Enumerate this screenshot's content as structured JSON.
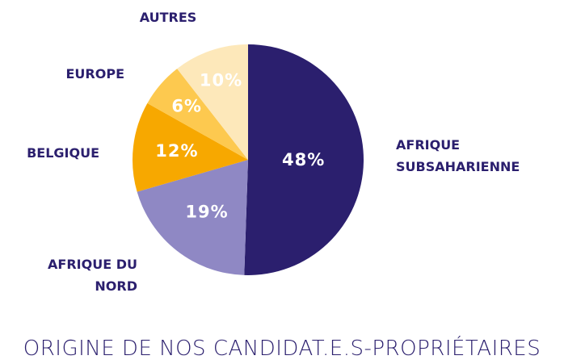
{
  "chart_data": {
    "type": "pie",
    "title": "ORIGINE DE NOS CANDIDAT.E.S-PROPRIÉTAIRES",
    "categories": [
      "AFRIQUE SUBSAHARIENNE",
      "AFRIQUE DU NORD",
      "BELGIQUE",
      "EUROPE",
      "AUTRES"
    ],
    "values": [
      48,
      19,
      12,
      6,
      10
    ],
    "value_labels": [
      "48%",
      "19%",
      "12%",
      "6%",
      "10%"
    ],
    "colors": [
      "#2b1f6e",
      "#8f88c4",
      "#f7a800",
      "#fdc94f",
      "#fde8ba"
    ]
  }
}
